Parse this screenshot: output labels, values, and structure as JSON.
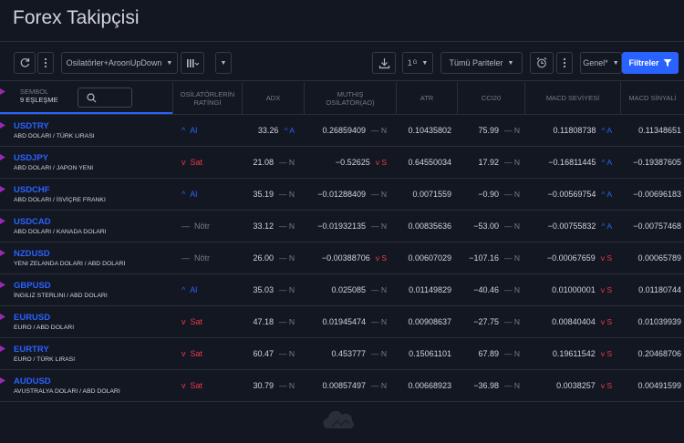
{
  "page_title": "Forex Takipçisi",
  "toolbar": {
    "preset_label": "Osilatörler+AroonUpDown",
    "interval_label": "1",
    "pair_filter_label": "Tümü Pariteler",
    "list_label": "Genel*",
    "filters_label": "Filtreler"
  },
  "header": {
    "symbol_label": "SEMBOL",
    "match_count": "9 EŞLEŞME",
    "columns": [
      "OSİLATÖRLERİN RATİNGİ",
      "ADX",
      "MUTHIŞ OSİLATÖR(AO)",
      "ATR",
      "CCI20",
      "MACD SEVİYESİ",
      "MACD SİNYALİ"
    ]
  },
  "rows": [
    {
      "symbol": "USDTRY",
      "desc": "ABD DOLARI / TÜRK LIRASI",
      "rating": "Al",
      "rating_mark": "^",
      "rating_type": "buy",
      "adx": "33.26",
      "adx_ind": "^ A",
      "adx_t": "buy",
      "ao": "0.26859409",
      "ao_ind": "— N",
      "ao_t": "neutral",
      "atr": "0.10435802",
      "cci": "75.99",
      "cci_ind": "— N",
      "cci_t": "neutral",
      "macd": "0.11808738",
      "macd_ind": "^ A",
      "macd_t": "buy",
      "sig": "0.11348651"
    },
    {
      "symbol": "USDJPY",
      "desc": "ABD DOLARI / JAPON YENI",
      "rating": "Sat",
      "rating_mark": "v",
      "rating_type": "sell",
      "adx": "21.08",
      "adx_ind": "— N",
      "adx_t": "neutral",
      "ao": "−0.52625",
      "ao_ind": "v S",
      "ao_t": "sell",
      "atr": "0.64550034",
      "cci": "17.92",
      "cci_ind": "— N",
      "cci_t": "neutral",
      "macd": "−0.16811445",
      "macd_ind": "^ A",
      "macd_t": "buy",
      "sig": "−0.19387605"
    },
    {
      "symbol": "USDCHF",
      "desc": "ABD DOLARI / İSVİÇRE FRANKI",
      "rating": "Al",
      "rating_mark": "^",
      "rating_type": "buy",
      "adx": "35.19",
      "adx_ind": "— N",
      "adx_t": "neutral",
      "ao": "−0.01288409",
      "ao_ind": "— N",
      "ao_t": "neutral",
      "atr": "0.0071559",
      "cci": "−0.90",
      "cci_ind": "— N",
      "cci_t": "neutral",
      "macd": "−0.00569754",
      "macd_ind": "^ A",
      "macd_t": "buy",
      "sig": "−0.00696183"
    },
    {
      "symbol": "USDCAD",
      "desc": "ABD DOLARI / KANADA DOLARI",
      "rating": "Nötr",
      "rating_mark": "—",
      "rating_type": "neutral",
      "adx": "33.12",
      "adx_ind": "— N",
      "adx_t": "neutral",
      "ao": "−0.01932135",
      "ao_ind": "— N",
      "ao_t": "neutral",
      "atr": "0.00835636",
      "cci": "−53.00",
      "cci_ind": "— N",
      "cci_t": "neutral",
      "macd": "−0.00755832",
      "macd_ind": "^ A",
      "macd_t": "buy",
      "sig": "−0.00757468"
    },
    {
      "symbol": "NZDUSD",
      "desc": "YENI ZELANDA DOLARI / ABD DOLARI",
      "rating": "Nötr",
      "rating_mark": "—",
      "rating_type": "neutral",
      "adx": "26.00",
      "adx_ind": "— N",
      "adx_t": "neutral",
      "ao": "−0.00388706",
      "ao_ind": "v S",
      "ao_t": "sell",
      "atr": "0.00607029",
      "cci": "−107.16",
      "cci_ind": "— N",
      "cci_t": "neutral",
      "macd": "−0.00067659",
      "macd_ind": "v S",
      "macd_t": "sell",
      "sig": "0.00065789"
    },
    {
      "symbol": "GBPUSD",
      "desc": "İNGILIZ STERLINI / ABD DOLARI",
      "rating": "Al",
      "rating_mark": "^",
      "rating_type": "buy",
      "adx": "35.03",
      "adx_ind": "— N",
      "adx_t": "neutral",
      "ao": "0.025085",
      "ao_ind": "— N",
      "ao_t": "neutral",
      "atr": "0.01149829",
      "cci": "−40.46",
      "cci_ind": "— N",
      "cci_t": "neutral",
      "macd": "0.01000001",
      "macd_ind": "v S",
      "macd_t": "sell",
      "sig": "0.01180744"
    },
    {
      "symbol": "EURUSD",
      "desc": "EURO / ABD DOLARI",
      "rating": "Sat",
      "rating_mark": "v",
      "rating_type": "sell",
      "adx": "47.18",
      "adx_ind": "— N",
      "adx_t": "neutral",
      "ao": "0.01945474",
      "ao_ind": "— N",
      "ao_t": "neutral",
      "atr": "0.00908637",
      "cci": "−27.75",
      "cci_ind": "— N",
      "cci_t": "neutral",
      "macd": "0.00840404",
      "macd_ind": "v S",
      "macd_t": "sell",
      "sig": "0.01039939"
    },
    {
      "symbol": "EURTRY",
      "desc": "EURO / TÜRK LIRASI",
      "rating": "Sat",
      "rating_mark": "v",
      "rating_type": "sell",
      "adx": "60.47",
      "adx_ind": "— N",
      "adx_t": "neutral",
      "ao": "0.453777",
      "ao_ind": "— N",
      "ao_t": "neutral",
      "atr": "0.15061101",
      "cci": "67.89",
      "cci_ind": "— N",
      "cci_t": "neutral",
      "macd": "0.19611542",
      "macd_ind": "v S",
      "macd_t": "sell",
      "sig": "0.20468706"
    },
    {
      "symbol": "AUDUSD",
      "desc": "AVUSTRALYA DOLARI / ABD DOLARI",
      "rating": "Sat",
      "rating_mark": "v",
      "rating_type": "sell",
      "adx": "30.79",
      "adx_ind": "— N",
      "adx_t": "neutral",
      "ao": "0.00857497",
      "ao_ind": "— N",
      "ao_t": "neutral",
      "atr": "0.00668923",
      "cci": "−36.98",
      "cci_ind": "— N",
      "cci_t": "neutral",
      "macd": "0.0038257",
      "macd_ind": "v S",
      "macd_t": "sell",
      "sig": "0.00491599"
    }
  ],
  "colors": {
    "accent": "#2962ff",
    "sell": "#f23645",
    "neutral": "#787b86",
    "flag": "#9c27b0",
    "background": "#131722"
  }
}
